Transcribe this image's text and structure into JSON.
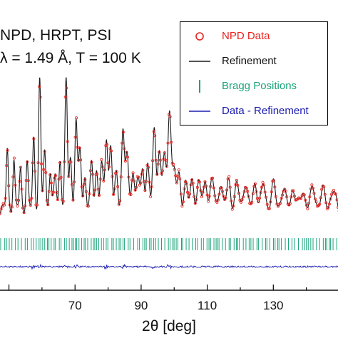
{
  "chart_data": {
    "type": "line",
    "annotations": [
      "NPD, HRPT, PSI",
      "λ = 1.49 Å, T = 100 K"
    ],
    "xlabel": "2θ [deg]",
    "ylabel": "",
    "xlim": [
      46,
      150
    ],
    "x_ticks": [
      70,
      90,
      110,
      130
    ],
    "y_ticks_shown": false,
    "grid": false,
    "legend_position": "top-right",
    "series": [
      {
        "name": "NPD Data",
        "style": "red open circles",
        "color": "#e8231f"
      },
      {
        "name": "Refinement",
        "style": "black line",
        "color": "#1a1a1a"
      },
      {
        "name": "Bragg Positions",
        "style": "green vertical ticks",
        "color": "#1aa37a"
      },
      {
        "name": "Data - Refinement",
        "style": "blue line",
        "color": "#1b1bb0"
      }
    ],
    "peaks": [
      {
        "x": 49.5,
        "h": 0.45
      },
      {
        "x": 51.5,
        "h": 0.38
      },
      {
        "x": 53.5,
        "h": 0.3
      },
      {
        "x": 55.5,
        "h": 0.35
      },
      {
        "x": 57.5,
        "h": 0.55
      },
      {
        "x": 59.3,
        "h": 1.0
      },
      {
        "x": 60.8,
        "h": 0.45
      },
      {
        "x": 62.5,
        "h": 0.3
      },
      {
        "x": 64.0,
        "h": 0.25
      },
      {
        "x": 65.5,
        "h": 0.38
      },
      {
        "x": 67.3,
        "h": 0.98
      },
      {
        "x": 68.6,
        "h": 0.4
      },
      {
        "x": 70.3,
        "h": 0.7
      },
      {
        "x": 71.5,
        "h": 0.45
      },
      {
        "x": 73.0,
        "h": 0.25
      },
      {
        "x": 75.0,
        "h": 0.33
      },
      {
        "x": 76.5,
        "h": 0.3
      },
      {
        "x": 78.0,
        "h": 0.35
      },
      {
        "x": 79.5,
        "h": 0.55
      },
      {
        "x": 80.8,
        "h": 0.5
      },
      {
        "x": 82.5,
        "h": 0.25
      },
      {
        "x": 84.5,
        "h": 0.62
      },
      {
        "x": 85.7,
        "h": 0.4
      },
      {
        "x": 87.5,
        "h": 0.3
      },
      {
        "x": 89.0,
        "h": 0.25
      },
      {
        "x": 90.5,
        "h": 0.3
      },
      {
        "x": 92.0,
        "h": 0.35
      },
      {
        "x": 94.0,
        "h": 0.6
      },
      {
        "x": 95.5,
        "h": 0.45
      },
      {
        "x": 97.0,
        "h": 0.4
      },
      {
        "x": 98.6,
        "h": 0.8
      },
      {
        "x": 100.0,
        "h": 0.3
      },
      {
        "x": 101.5,
        "h": 0.25
      },
      {
        "x": 103.5,
        "h": 0.2
      },
      {
        "x": 105.5,
        "h": 0.22
      },
      {
        "x": 107.5,
        "h": 0.2
      },
      {
        "x": 109.5,
        "h": 0.22
      },
      {
        "x": 111.5,
        "h": 0.22
      },
      {
        "x": 114.0,
        "h": 0.2
      },
      {
        "x": 116.5,
        "h": 0.22
      },
      {
        "x": 119.0,
        "h": 0.18
      },
      {
        "x": 121.5,
        "h": 0.2
      },
      {
        "x": 124.5,
        "h": 0.2
      },
      {
        "x": 127.0,
        "h": 0.18
      },
      {
        "x": 130.0,
        "h": 0.18
      },
      {
        "x": 133.0,
        "h": 0.15
      },
      {
        "x": 136.0,
        "h": 0.15
      },
      {
        "x": 139.0,
        "h": 0.13
      },
      {
        "x": 142.0,
        "h": 0.15
      },
      {
        "x": 145.0,
        "h": 0.13
      },
      {
        "x": 148.0,
        "h": 0.13
      }
    ],
    "background_level": 0.05,
    "bragg_range": [
      46,
      150
    ]
  }
}
